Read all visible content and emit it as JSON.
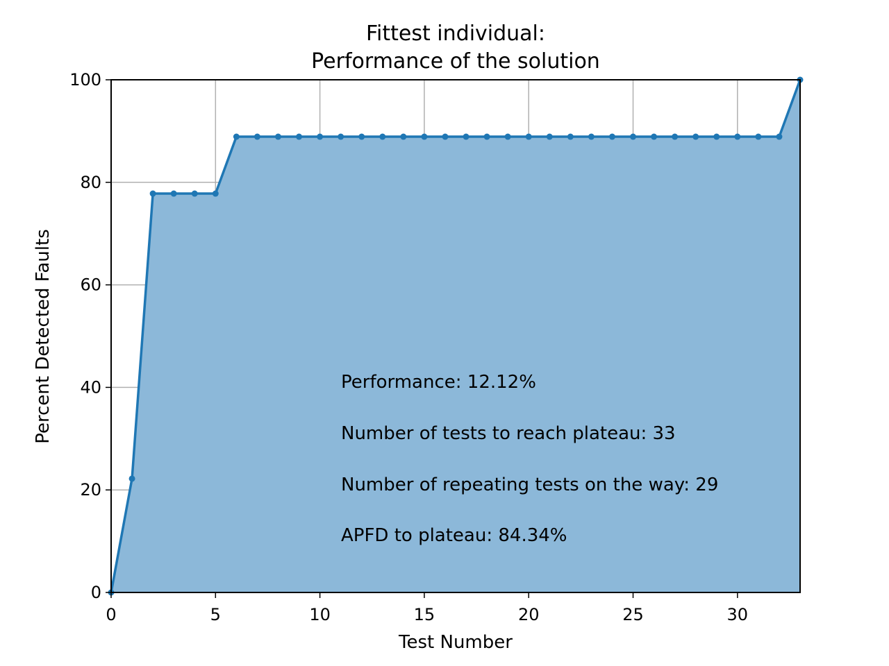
{
  "chart_data": {
    "type": "area",
    "title_line1": "Fittest individual:",
    "title_line2": "Performance of the solution",
    "xlabel": "Test Number",
    "ylabel": "Percent Detected Faults",
    "xlim": [
      0,
      33
    ],
    "ylim": [
      0,
      100
    ],
    "xticks": [
      0,
      5,
      10,
      15,
      20,
      25,
      30
    ],
    "yticks": [
      0,
      20,
      40,
      60,
      80,
      100
    ],
    "grid": true,
    "colors": {
      "line": "#1f77b4",
      "fill": "#8cb8d9",
      "grid": "#b0b0b0"
    },
    "x": [
      0,
      1,
      2,
      3,
      4,
      5,
      6,
      7,
      8,
      9,
      10,
      11,
      12,
      13,
      14,
      15,
      16,
      17,
      18,
      19,
      20,
      21,
      22,
      23,
      24,
      25,
      26,
      27,
      28,
      29,
      30,
      31,
      32,
      33
    ],
    "y": [
      0,
      22.2,
      77.8,
      77.8,
      77.8,
      77.8,
      88.9,
      88.9,
      88.9,
      88.9,
      88.9,
      88.9,
      88.9,
      88.9,
      88.9,
      88.9,
      88.9,
      88.9,
      88.9,
      88.9,
      88.9,
      88.9,
      88.9,
      88.9,
      88.9,
      88.9,
      88.9,
      88.9,
      88.9,
      88.9,
      88.9,
      88.9,
      88.9,
      100
    ],
    "annotations": [
      "Performance: 12.12%",
      "Number of tests to reach plateau: 33",
      "Number of repeating tests on the way: 29",
      "APFD to plateau: 84.34%"
    ]
  }
}
